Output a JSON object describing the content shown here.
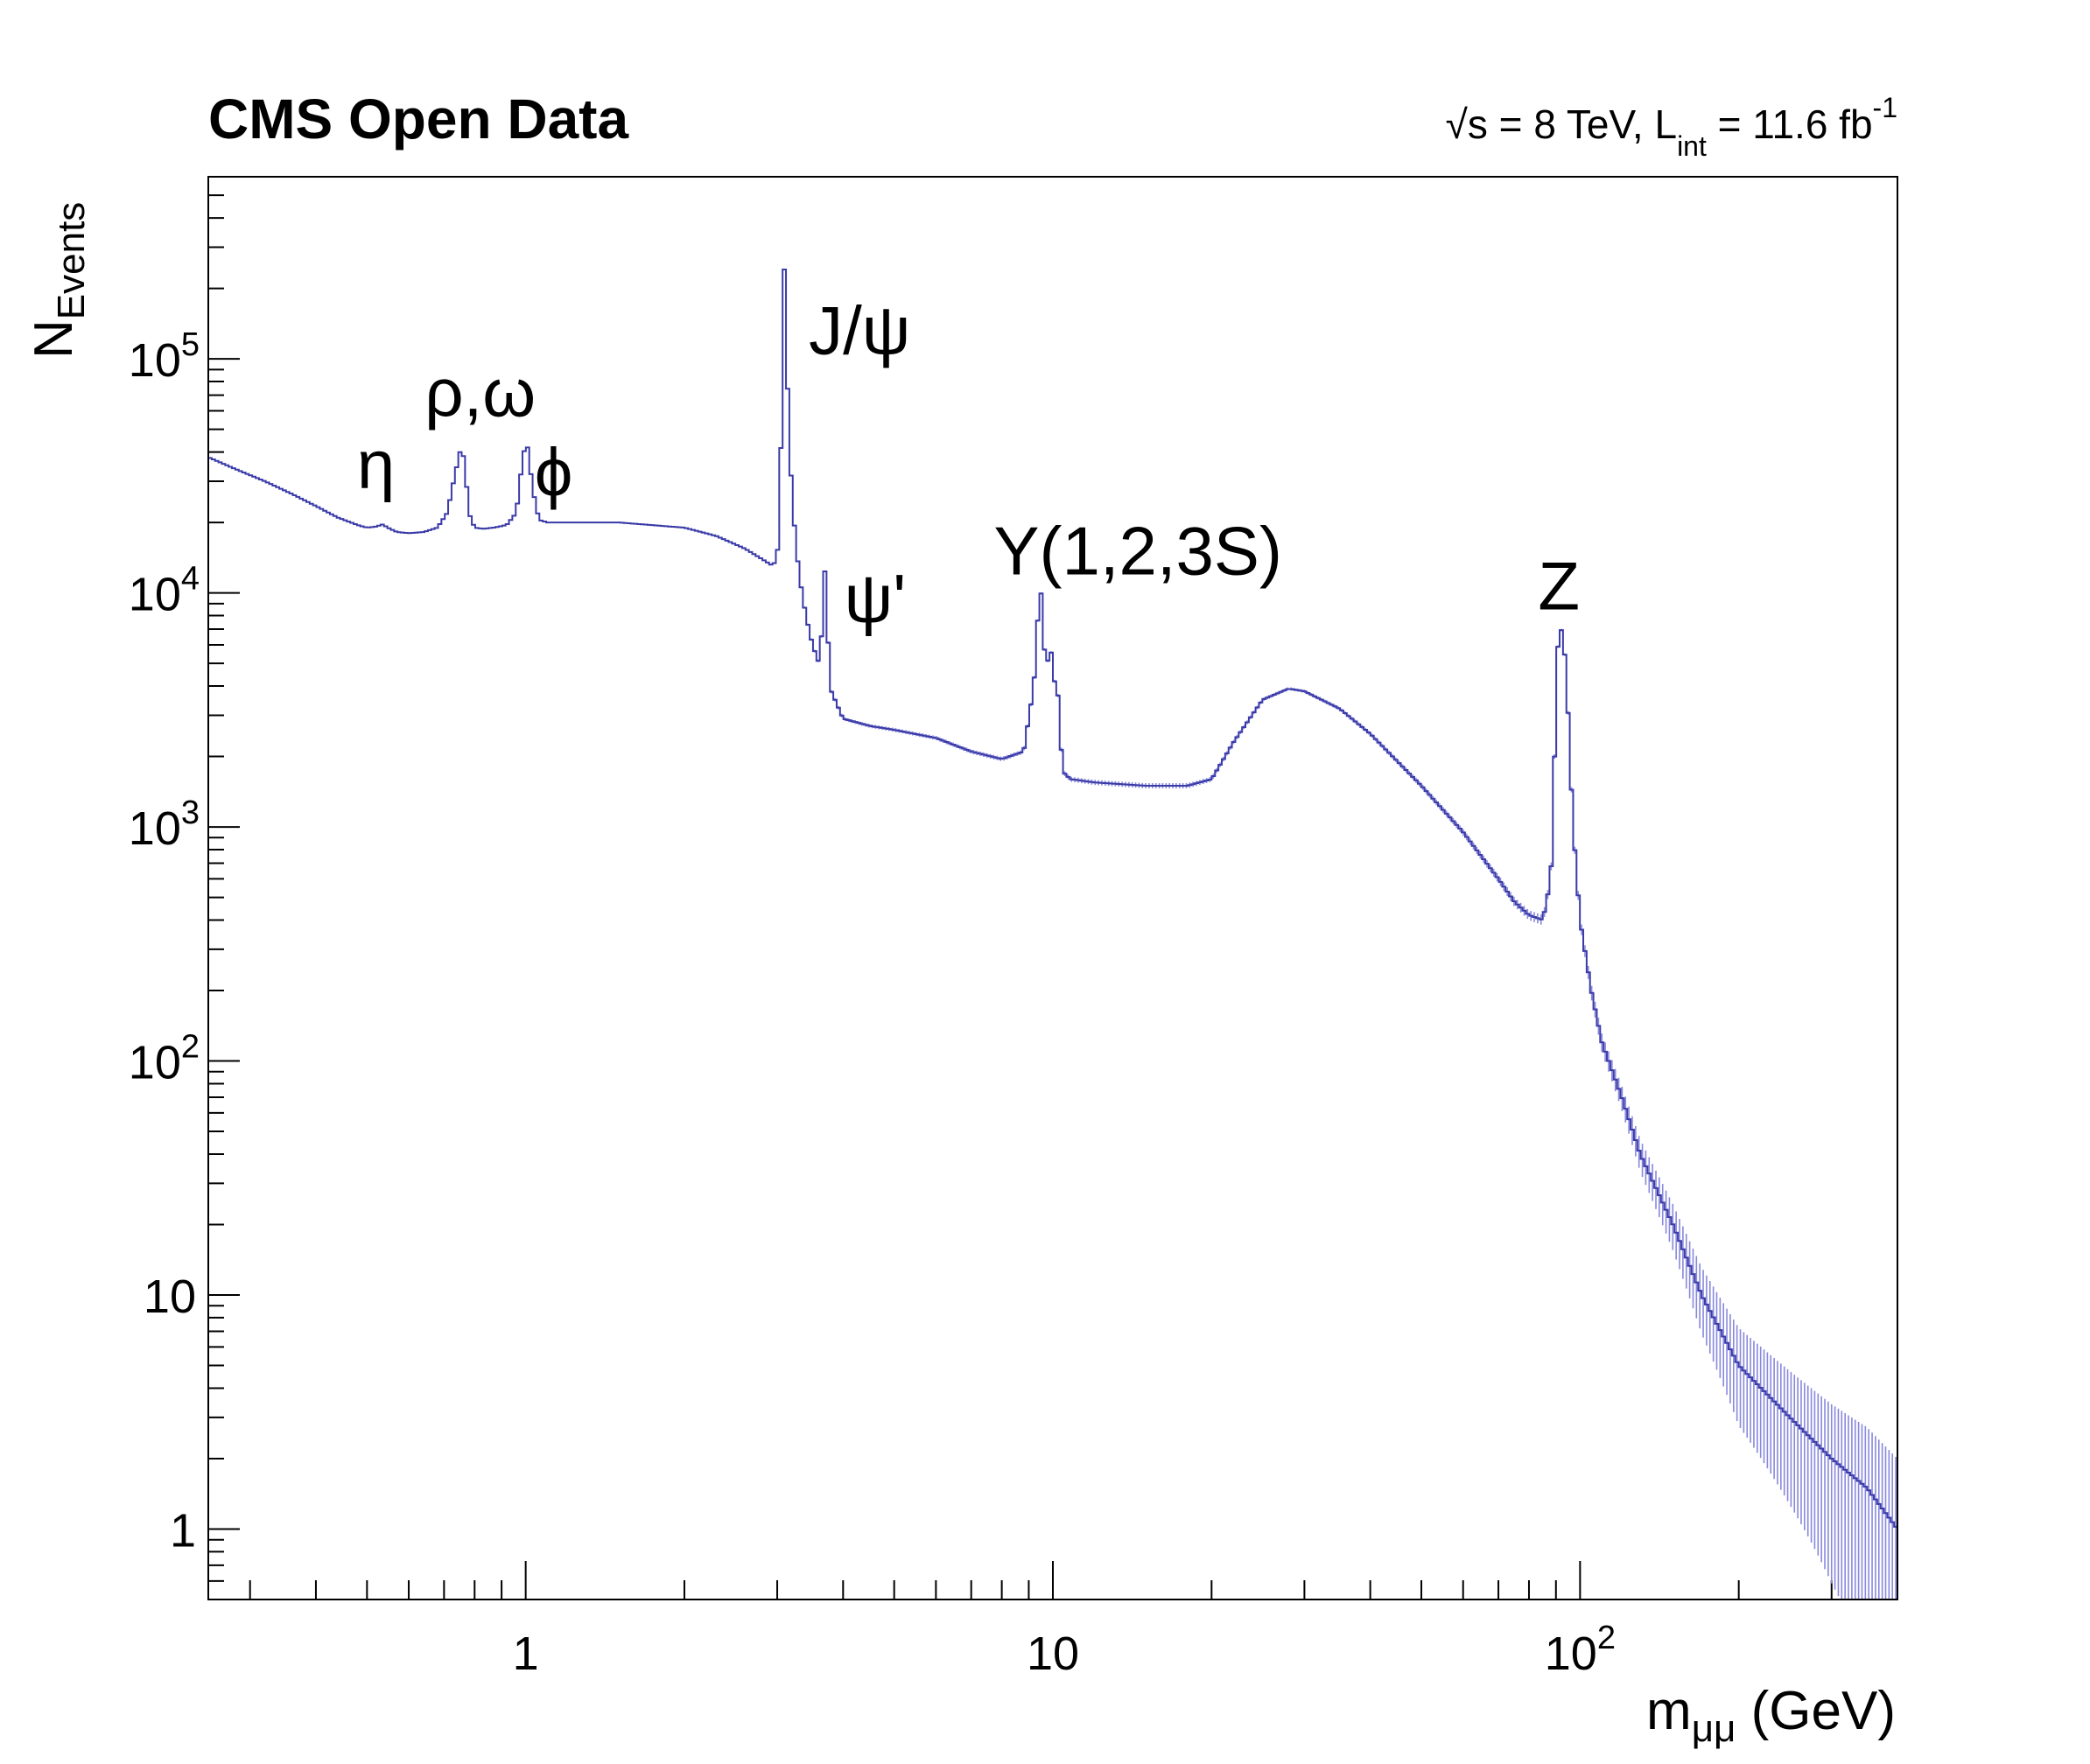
{
  "chart_data": {
    "type": "line",
    "title": "CMS Open Data",
    "energy_label": {
      "sqrt": "√",
      "rest": "s = 8 TeV, L",
      "sub": "int",
      "tail": " = 11.6 fb",
      "sup": "-1"
    },
    "ylabel": {
      "main": "N",
      "sub": "Events"
    },
    "xlabel": {
      "main": "m",
      "sub": "μμ",
      "tail": " (GeV)"
    },
    "x_scale": "log",
    "y_scale": "log",
    "xlim": [
      0.25,
      400
    ],
    "ylim": [
      0.5,
      600000
    ],
    "grid": false,
    "x_ticks": [
      {
        "value": 1,
        "label": "1",
        "sup": ""
      },
      {
        "value": 10,
        "label": "10",
        "sup": ""
      },
      {
        "value": 100,
        "label": "10",
        "sup": "2"
      }
    ],
    "y_ticks": [
      {
        "value": 1,
        "label": "1",
        "sup": ""
      },
      {
        "value": 10,
        "label": "10",
        "sup": ""
      },
      {
        "value": 100,
        "label": "10",
        "sup": "2"
      },
      {
        "value": 1000,
        "label": "10",
        "sup": "3"
      },
      {
        "value": 10000,
        "label": "10",
        "sup": "4"
      },
      {
        "value": 100000,
        "label": "10",
        "sup": "5"
      }
    ],
    "series": [
      {
        "color": "#3a3aa8",
        "error_color": "#8888dd",
        "x": [
          0.25,
          0.28,
          0.32,
          0.36,
          0.4,
          0.44,
          0.48,
          0.5,
          0.52,
          0.535,
          0.55,
          0.57,
          0.6,
          0.64,
          0.68,
          0.71,
          0.73,
          0.75,
          0.765,
          0.78,
          0.8,
          0.83,
          0.87,
          0.92,
          0.96,
          0.99,
          1.01,
          1.03,
          1.06,
          1.1,
          1.2,
          1.5,
          2.0,
          2.3,
          2.6,
          2.8,
          2.95,
          3.02,
          3.06,
          3.097,
          3.13,
          3.2,
          3.3,
          3.4,
          3.5,
          3.6,
          3.65,
          3.686,
          3.72,
          3.8,
          4.0,
          4.5,
          5.0,
          6.0,
          7.0,
          8.0,
          8.8,
          9.2,
          9.46,
          9.7,
          9.9,
          10.02,
          10.15,
          10.36,
          10.5,
          10.8,
          12,
          15,
          18,
          20,
          22,
          25,
          28,
          30,
          35,
          40,
          50,
          60,
          70,
          75,
          80,
          85,
          88,
          91.2,
          94,
          97,
          100,
          105,
          110,
          120,
          130,
          150,
          170,
          200,
          250,
          300,
          350,
          400
        ],
        "y": [
          38000,
          34000,
          30000,
          26500,
          23500,
          21000,
          19500,
          19000,
          19200,
          19600,
          18900,
          18200,
          18000,
          18200,
          19000,
          22000,
          30000,
          40000,
          38000,
          22000,
          19000,
          18800,
          19000,
          19500,
          22000,
          40000,
          42000,
          28000,
          20500,
          20000,
          20000,
          20000,
          19000,
          17500,
          15500,
          14000,
          13000,
          16000,
          60000,
          270000,
          90000,
          25000,
          12000,
          8000,
          6000,
          5000,
          7000,
          14000,
          8000,
          3800,
          2900,
          2700,
          2600,
          2400,
          2100,
          1950,
          2100,
          4000,
          11500,
          4500,
          6200,
          3800,
          4800,
          2200,
          1700,
          1600,
          1550,
          1500,
          1500,
          1600,
          2300,
          3500,
          3900,
          3800,
          3200,
          2500,
          1500,
          950,
          600,
          480,
          420,
          400,
          600,
          8200,
          5000,
          1000,
          400,
          200,
          120,
          70,
          40,
          20,
          10,
          5,
          3,
          2,
          1.5,
          1
        ]
      }
    ],
    "annotations": [
      {
        "text": "η",
        "x": 0.52,
        "y": 28000
      },
      {
        "text": "ρ,ω",
        "x": 0.82,
        "y": 57000
      },
      {
        "text": "ϕ",
        "x": 1.13,
        "y": 26000
      },
      {
        "text": "J/ψ",
        "x": 4.3,
        "y": 105000
      },
      {
        "text": "ψ'",
        "x": 4.6,
        "y": 7500
      },
      {
        "text": "Y(1,2,3S)",
        "x": 14.5,
        "y": 12000
      },
      {
        "text": "Z",
        "x": 91.2,
        "y": 8500
      }
    ]
  }
}
